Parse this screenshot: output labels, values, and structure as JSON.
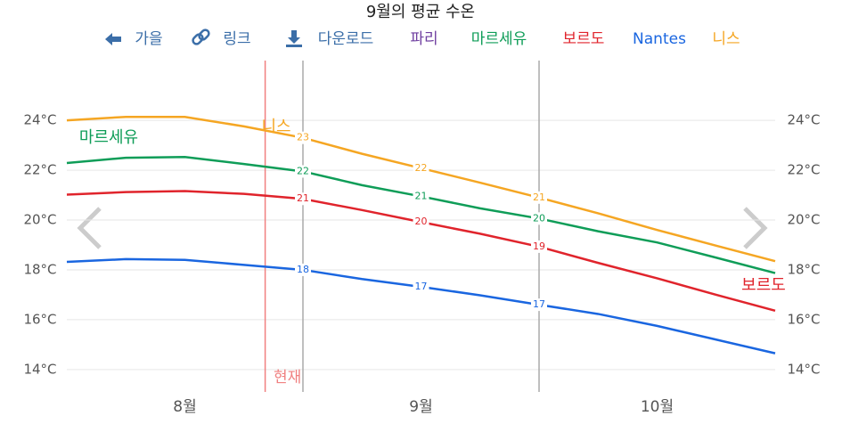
{
  "chart_data": {
    "type": "line",
    "title": "9월의 평균 수온",
    "toolbar": [
      "가을",
      "링크",
      "다운로드"
    ],
    "x": [
      7.5,
      7.75,
      8.0,
      8.25,
      8.5,
      8.75,
      9.0,
      9.25,
      9.5,
      9.75,
      10.0,
      10.25,
      10.5
    ],
    "xlim": [
      7.5,
      10.5
    ],
    "xticks": [
      {
        "value": 8,
        "label": "8월"
      },
      {
        "value": 9,
        "label": "9월"
      },
      {
        "value": 10,
        "label": "10월"
      }
    ],
    "xgrid": [
      8.5,
      9.5
    ],
    "now": {
      "value": 8.34,
      "label": "현재"
    },
    "ylim": [
      13.1,
      26.4
    ],
    "yticks": [
      {
        "value": 14,
        "label": "14°C"
      },
      {
        "value": 16,
        "label": "16°C"
      },
      {
        "value": 18,
        "label": "18°C"
      },
      {
        "value": 20,
        "label": "20°C"
      },
      {
        "value": 22,
        "label": "22°C"
      },
      {
        "value": 24,
        "label": "24°C"
      }
    ],
    "grid": true,
    "series": [
      {
        "name": "파리",
        "color": "#6f3fa0",
        "values": [
          null,
          null,
          null,
          null,
          null,
          null,
          null,
          null,
          null,
          null,
          null,
          null,
          null
        ]
      },
      {
        "name": "마르세유",
        "color": "#0f9d58",
        "values": [
          22.29,
          22.5,
          22.53,
          22.25,
          21.95,
          21.4,
          20.95,
          20.47,
          20.06,
          19.55,
          19.1,
          18.49,
          17.87
        ],
        "value_labels": [
          null,
          null,
          null,
          null,
          "22",
          null,
          "21",
          null,
          "20",
          null,
          null,
          null,
          null
        ]
      },
      {
        "name": "보르도",
        "color": "#e0242c",
        "values": [
          21.02,
          21.12,
          21.16,
          21.05,
          20.85,
          20.4,
          19.92,
          19.45,
          18.93,
          18.28,
          17.66,
          17.0,
          16.36
        ],
        "value_labels": [
          null,
          null,
          null,
          null,
          "21",
          null,
          "20",
          null,
          "19",
          null,
          null,
          null,
          null
        ]
      },
      {
        "name": "Nantes",
        "color": "#1a66e0",
        "values": [
          18.32,
          18.43,
          18.4,
          18.2,
          18.0,
          17.63,
          17.32,
          16.98,
          16.6,
          16.23,
          15.75,
          15.2,
          14.65
        ],
        "value_labels": [
          null,
          null,
          null,
          null,
          "18",
          null,
          "17",
          null,
          "17",
          null,
          null,
          null,
          null
        ]
      },
      {
        "name": "니스",
        "color": "#f5a623",
        "values": [
          24.0,
          24.14,
          24.14,
          23.76,
          23.3,
          22.66,
          22.08,
          21.5,
          20.9,
          20.27,
          19.6,
          18.97,
          18.35
        ],
        "value_labels": [
          null,
          null,
          null,
          null,
          "23",
          null,
          "22",
          null,
          "21",
          null,
          null,
          null,
          null
        ]
      }
    ]
  }
}
